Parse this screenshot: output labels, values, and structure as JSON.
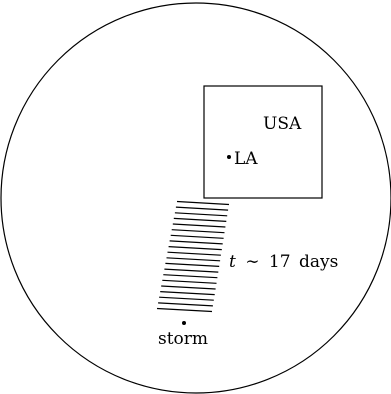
{
  "diagram": {
    "region_label": "USA",
    "city_label": "LA",
    "source_label": "storm",
    "time_label": {
      "variable": "t",
      "relation": "∼",
      "value": "17",
      "unit": "days"
    }
  }
}
